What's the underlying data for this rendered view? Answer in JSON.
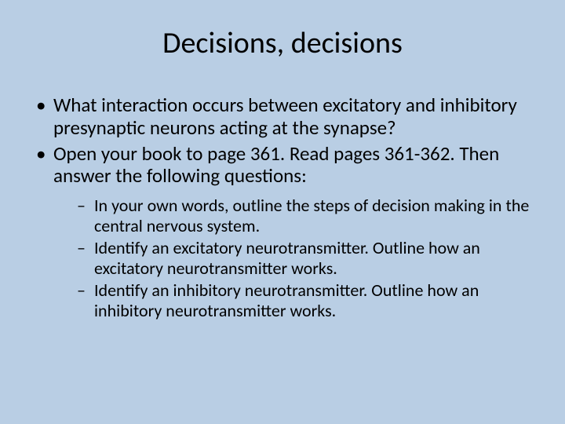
{
  "slide": {
    "background_color": "#b9cee4",
    "text_color": "#000000",
    "title": {
      "text": "Decisions, decisions",
      "fontsize": 38
    },
    "body_fontsize": 25,
    "sub_fontsize": 22,
    "bullets": [
      {
        "text": "What interaction occurs between excitatory and inhibitory presynaptic neurons acting at the synapse?"
      },
      {
        "text": "Open your book to page 361.  Read pages 361-362.  Then answer the following questions:",
        "subs": [
          "In your own words, outline the steps of decision making in the central nervous system.",
          "Identify an excitatory neurotransmitter.  Outline how an excitatory neurotransmitter works.",
          "Identify an inhibitory neurotransmitter.  Outline how an inhibitory neurotransmitter works."
        ]
      }
    ]
  }
}
